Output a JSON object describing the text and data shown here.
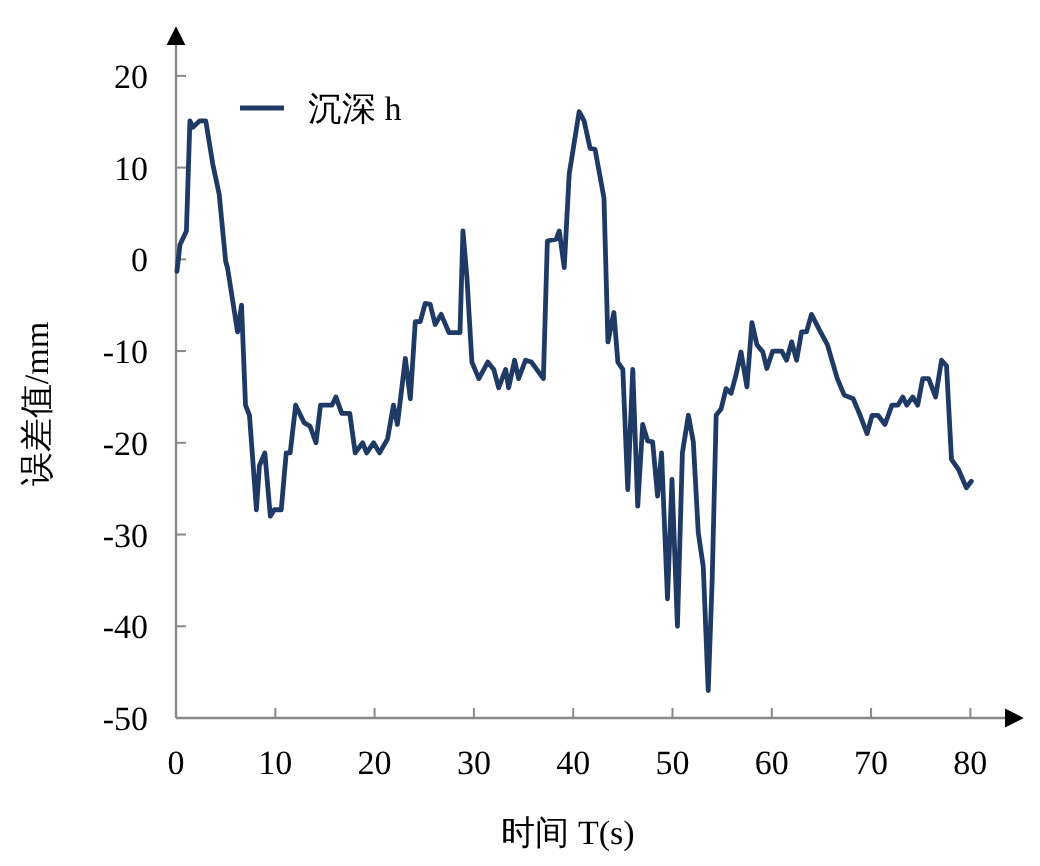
{
  "chart_data": {
    "type": "line",
    "xlabel": "时间 T(s)",
    "ylabel": "误差值/mm",
    "xlim": [
      0,
      85
    ],
    "ylim": [
      -50,
      25
    ],
    "xticks": [
      0,
      10,
      20,
      30,
      40,
      50,
      60,
      70,
      80
    ],
    "yticks": [
      -50,
      -40,
      -30,
      -20,
      -10,
      0,
      10,
      20
    ],
    "grid": false,
    "legend": "top left",
    "marker": "none",
    "line_style": "solid",
    "series": [
      {
        "name": "沉深 h",
        "color": "#1f3a64",
        "x": [
          0.1,
          0.4,
          1.05,
          1.4,
          1.7,
          2.4,
          3.0,
          3.7,
          4.35,
          5.0,
          5.2,
          6.2,
          6.6,
          7.0,
          7.4,
          8.1,
          8.4,
          8.95,
          9.5,
          9.9,
          10.6,
          11.1,
          11.5,
          12.05,
          12.9,
          13.5,
          14.1,
          14.55,
          15.7,
          16.1,
          16.7,
          17.5,
          18.05,
          18.8,
          19.2,
          19.9,
          20.5,
          21.3,
          21.9,
          22.3,
          23.1,
          23.6,
          24.1,
          24.6,
          25.1,
          25.6,
          26.1,
          26.7,
          27.5,
          28.6,
          28.9,
          29.3,
          29.8,
          30.5,
          31.4,
          32.0,
          32.5,
          33.2,
          33.5,
          34.1,
          34.5,
          35.2,
          35.8,
          37.0,
          37.4,
          38.3,
          38.6,
          39.1,
          39.6,
          40.6,
          41.1,
          41.7,
          42.2,
          43.1,
          43.5,
          44.1,
          44.5,
          45.0,
          45.5,
          46.0,
          46.5,
          47.0,
          47.5,
          48.0,
          48.5,
          48.9,
          49.5,
          49.95,
          50.5,
          51.0,
          51.6,
          52.1,
          52.6,
          53.1,
          53.6,
          54.0,
          54.4,
          54.9,
          55.4,
          55.9,
          56.4,
          56.9,
          57.5,
          58.0,
          58.5,
          59.1,
          59.5,
          60.1,
          61.0,
          61.5,
          62.0,
          62.5,
          63.0,
          63.5,
          64.0,
          64.8,
          65.6,
          66.6,
          67.3,
          68.2,
          68.9,
          69.6,
          70.1,
          70.7,
          71.4,
          72.1,
          72.7,
          73.2,
          73.6,
          74.2,
          74.7,
          75.2,
          75.8,
          76.5,
          77.1,
          77.6,
          78.1,
          78.8,
          79.6,
          80.1
        ],
        "values": [
          -1.3,
          1.6,
          3.1,
          15.1,
          14.4,
          15.1,
          15.1,
          10.4,
          7.1,
          -0.2,
          -1,
          -7.9,
          -5,
          -15.9,
          -17,
          -27.3,
          -22.5,
          -21.1,
          -28,
          -27.3,
          -27.3,
          -21.1,
          -21.1,
          -15.9,
          -17.8,
          -18.2,
          -20,
          -15.9,
          -15.9,
          -15,
          -16.8,
          -16.8,
          -21.1,
          -20,
          -21.1,
          -20,
          -21.1,
          -19.6,
          -15.9,
          -18,
          -10.8,
          -15.2,
          -6.8,
          -6.8,
          -4.8,
          -4.9,
          -7.1,
          -6,
          -8,
          -8,
          3.1,
          -2,
          -11.2,
          -13,
          -11.2,
          -12,
          -14,
          -12,
          -14,
          -11,
          -13,
          -11,
          -11.2,
          -13,
          2,
          2.2,
          3.1,
          -0.9,
          9.3,
          16.1,
          15.1,
          12.1,
          12,
          6.7,
          -9,
          -5.8,
          -11.2,
          -12,
          -25.1,
          -12,
          -26.9,
          -18,
          -19.8,
          -19.9,
          -25.8,
          -21.1,
          -37,
          -24,
          -40,
          -21.1,
          -17,
          -19.9,
          -29.8,
          -33.5,
          -47,
          -34.9,
          -17,
          -16.3,
          -14.1,
          -14.6,
          -12.6,
          -10.1,
          -13.9,
          -6.9,
          -9.3,
          -10.1,
          -11.9,
          -10,
          -10,
          -11,
          -9,
          -11,
          -7.9,
          -7.9,
          -6,
          -7.7,
          -9.3,
          -13,
          -14.8,
          -15.2,
          -17,
          -19,
          -17,
          -17,
          -18,
          -15.9,
          -15.9,
          -15,
          -15.9,
          -15,
          -15.9,
          -13,
          -13,
          -15,
          -11,
          -11.6,
          -21.8,
          -22.9,
          -24.9,
          -24.2
        ]
      }
    ]
  }
}
